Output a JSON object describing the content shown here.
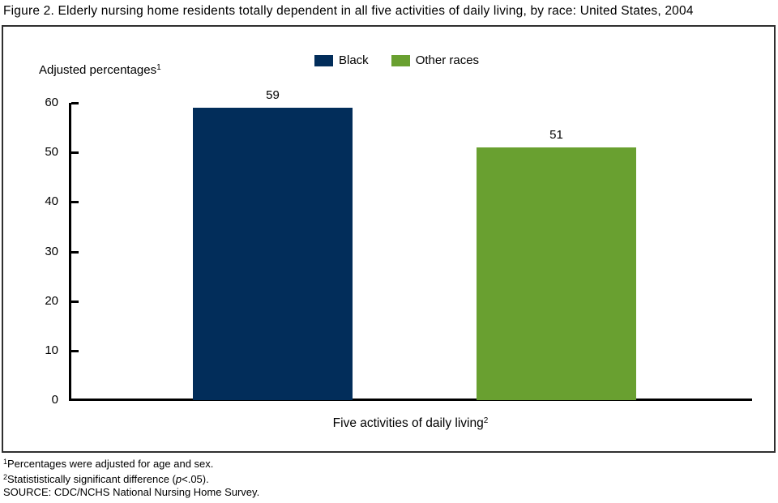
{
  "chart_data": {
    "type": "bar",
    "title": "Figure 2. Elderly nursing home residents totally dependent in all five activities of daily living, by race: United States, 2004",
    "y_axis_label": "Adjusted percentages",
    "y_axis_label_sup": "1",
    "x_axis_label": "Five activities of daily living",
    "x_axis_label_sup": "2",
    "categories": [
      "Five activities of daily living"
    ],
    "series": [
      {
        "name": "Black",
        "values": [
          59
        ],
        "color": "#022d5a"
      },
      {
        "name": "Other races",
        "values": [
          51
        ],
        "color": "#69a030"
      }
    ],
    "data_labels": [
      "59",
      "51"
    ],
    "ylim": [
      0,
      60
    ],
    "yticks": [
      60,
      50,
      40,
      30,
      20,
      10,
      0
    ],
    "grid": false,
    "legend_position": "top-center"
  },
  "footnotes": {
    "line1_sup": "1",
    "line1_text": "Percentages were adjusted for age and sex.",
    "line2_sup": "2",
    "line2_prefix": "Statististically significant difference (",
    "line2_italic": "p",
    "line2_suffix": "<.05).",
    "source": "SOURCE: CDC/NCHS National Nursing Home Survey."
  }
}
